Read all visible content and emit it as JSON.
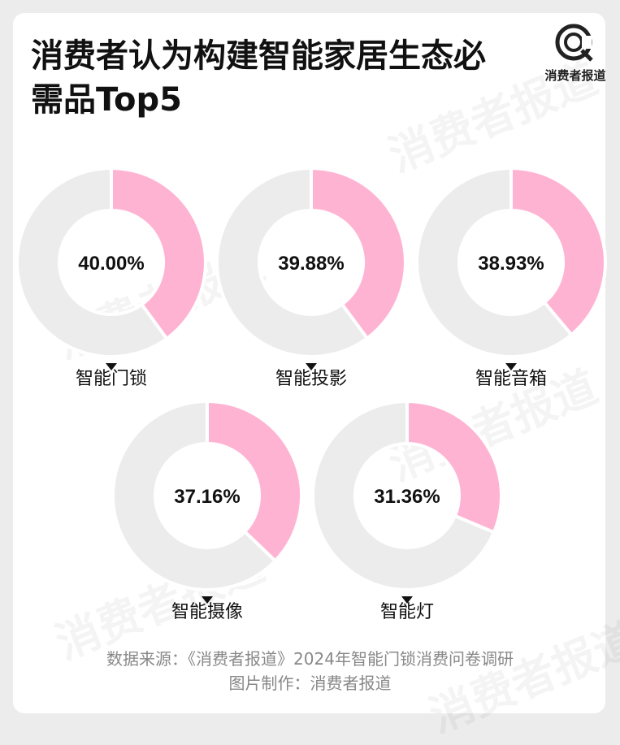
{
  "title_lines": [
    "消费者认为构建智能家居生态必",
    "需品Top5"
  ],
  "logo_text": "消费者报道",
  "watermark": "消费者报道",
  "colors": {
    "filled": "#ffb3d3",
    "remainder": "#ececec",
    "separator": "#ffffff"
  },
  "chart_data": {
    "type": "pie",
    "variant": "donut",
    "title": "消费者认为构建智能家居生态必需品Top5",
    "unit": "%",
    "items": [
      {
        "label": "智能门锁",
        "value": 40.0,
        "display": "40.00%"
      },
      {
        "label": "智能投影",
        "value": 39.88,
        "display": "39.88%"
      },
      {
        "label": "智能音箱",
        "value": 38.93,
        "display": "38.93%"
      },
      {
        "label": "智能摄像",
        "value": 37.16,
        "display": "37.16%"
      },
      {
        "label": "智能灯",
        "value": 31.36,
        "display": "31.36%"
      }
    ]
  },
  "source_lines": [
    "数据来源：《消费者报道》2024年智能门锁消费问卷调研",
    "图片制作：消费者报道"
  ]
}
